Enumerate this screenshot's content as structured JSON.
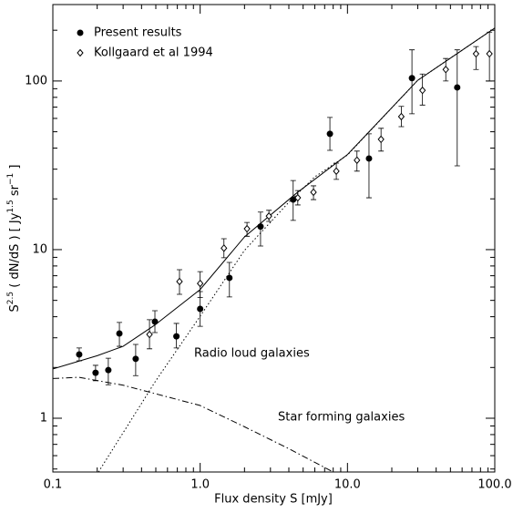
{
  "chart_data": {
    "type": "scatter",
    "x_label": "Flux density S [mJy]",
    "y_label_parts": [
      "S",
      "2.5",
      " ( dN/dS ) [ Jy",
      "1.5",
      " sr",
      "−1",
      " ]"
    ],
    "log_x": true,
    "log_y": true,
    "xlim": [
      0.1,
      100
    ],
    "ylim": [
      0.48,
      284
    ],
    "xticks": [
      0.1,
      {
        "value": 1,
        "label": "1.0"
      },
      {
        "value": 10,
        "label": "10.0"
      },
      {
        "value": 100,
        "label": "100.0"
      }
    ],
    "yticks": [
      1,
      10,
      100
    ],
    "xminorticks": [
      0.2,
      0.3,
      0.4,
      0.5,
      0.6,
      0.7,
      0.8,
      0.9,
      2,
      3,
      4,
      5,
      6,
      7,
      8,
      9,
      20,
      30,
      40,
      50,
      60,
      70,
      80,
      90
    ],
    "yminorticks": [
      0.5,
      0.6,
      0.7,
      0.8,
      0.9,
      2,
      3,
      4,
      5,
      6,
      7,
      8,
      9,
      20,
      30,
      40,
      50,
      60,
      70,
      80,
      90,
      200
    ],
    "legend_position": "upper left",
    "series": [
      {
        "name": "Present results",
        "marker": "filled-circle",
        "color": "#000000",
        "x": [
          0.151,
          0.195,
          0.238,
          0.283,
          0.365,
          0.493,
          0.69,
          1.0,
          1.58,
          2.57,
          4.28,
          7.6,
          14.0,
          27.4,
          55.6
        ],
        "values": [
          2.39,
          1.86,
          1.93,
          3.18,
          2.25,
          3.74,
          3.06,
          4.45,
          6.8,
          13.7,
          19.8,
          48.6,
          34.7,
          104,
          91.6
        ],
        "y_low": [
          2.19,
          1.67,
          1.58,
          2.67,
          1.79,
          3.22,
          2.61,
          3.51,
          5.24,
          10.5,
          14.9,
          38.8,
          20.3,
          63.9,
          31.4
        ],
        "y_high": [
          2.61,
          2.06,
          2.27,
          3.7,
          2.74,
          4.34,
          3.65,
          5.64,
          8.4,
          16.7,
          25.7,
          60.8,
          48.6,
          153,
          153
        ]
      },
      {
        "name": "Kollgaard et al 1994",
        "marker": "open-diamond",
        "color": "#000000",
        "x": [
          0.453,
          0.724,
          1.0,
          1.45,
          2.08,
          2.93,
          4.6,
          5.88,
          8.4,
          11.6,
          16.9,
          23.2,
          32.3,
          46.5,
          74.6,
          92
        ],
        "values": [
          3.14,
          6.47,
          6.3,
          10.2,
          13.3,
          15.8,
          20.3,
          21.9,
          29.2,
          33.9,
          45.1,
          61.5,
          88,
          117,
          145,
          145
        ],
        "y_low": [
          2.58,
          5.43,
          5.2,
          8.95,
          12.0,
          14.7,
          18.4,
          19.8,
          26.1,
          29.2,
          38.4,
          53.6,
          72,
          100,
          117,
          100
        ],
        "y_high": [
          3.84,
          7.6,
          7.4,
          11.6,
          14.5,
          17.1,
          22.4,
          23.9,
          32.6,
          38.4,
          52.4,
          70.7,
          110,
          136,
          160,
          195
        ]
      }
    ],
    "curves": [
      {
        "style": "solid",
        "x": [
          0.1,
          0.2,
          0.3,
          0.49,
          1.0,
          2.0,
          4.5,
          10,
          30,
          100
        ],
        "values": [
          1.96,
          2.35,
          2.67,
          3.56,
          5.8,
          11.9,
          21.6,
          36.6,
          101,
          206
        ]
      },
      {
        "style": "dotted",
        "x": [
          0.204,
          0.5,
          1.0,
          2.0,
          4.0,
          6.0,
          10,
          30,
          100
        ],
        "values": [
          0.48,
          1.67,
          4.03,
          9.9,
          19.1,
          27,
          36.4,
          101,
          206
        ]
      },
      {
        "style": "dashdot",
        "x": [
          0.1,
          0.15,
          0.3,
          1.0,
          2.0,
          4.0,
          8.0
        ],
        "values": [
          1.72,
          1.75,
          1.57,
          1.19,
          0.89,
          0.66,
          0.48
        ]
      }
    ],
    "annotations": [
      "Radio loud galaxies",
      "Star forming galaxies"
    ]
  }
}
